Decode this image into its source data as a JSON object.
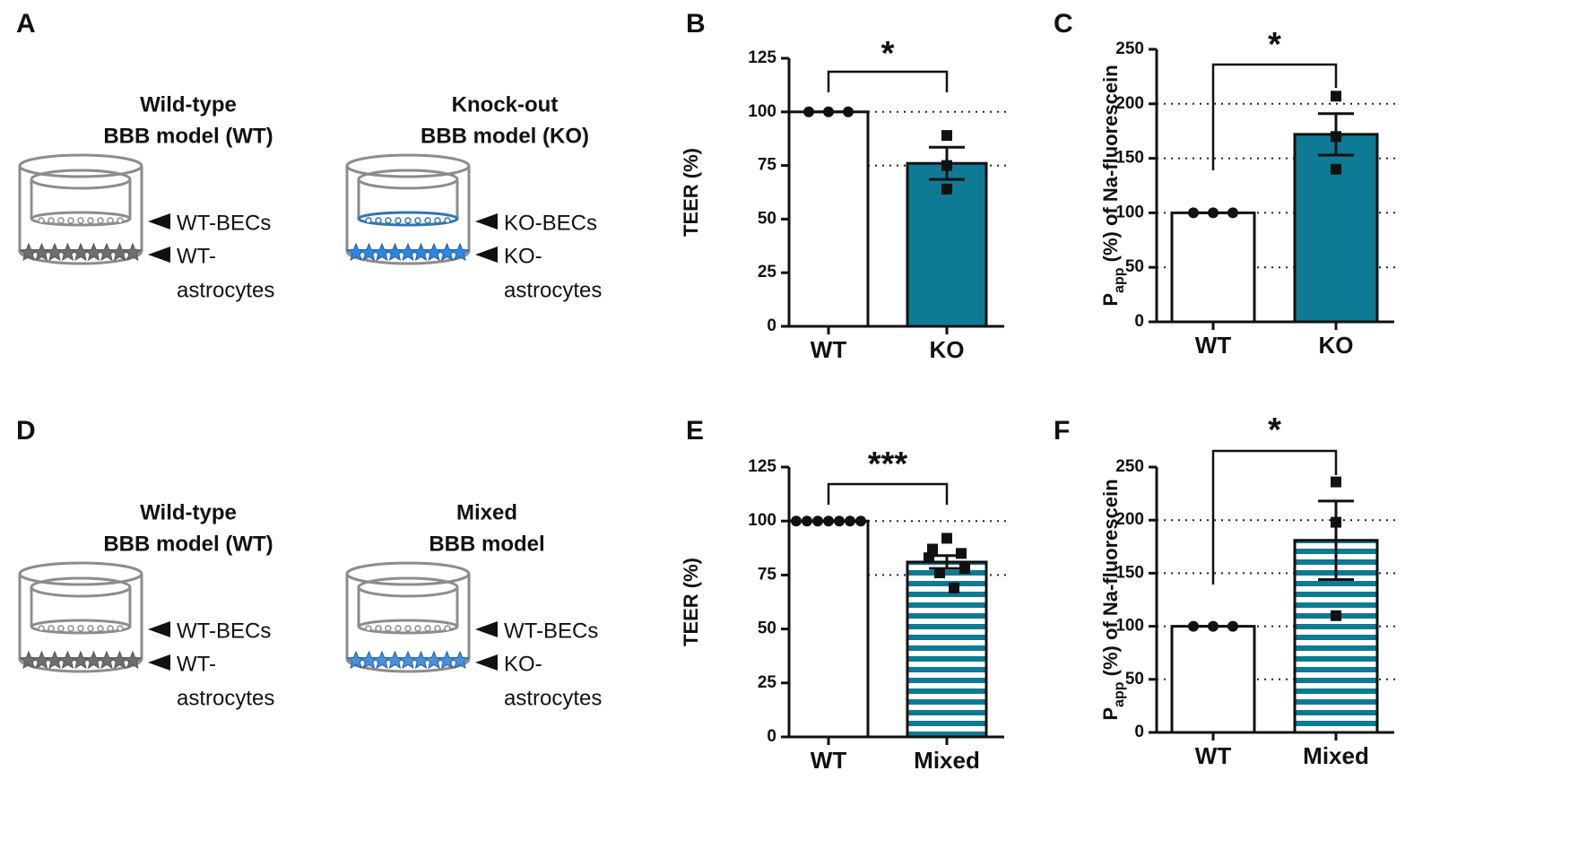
{
  "panel_labels": [
    "A",
    "D"
  ],
  "diagrams": [
    {
      "title": [
        "Wild-type",
        "BBB model (WT)"
      ],
      "cell_labels": [
        "WT-BECs",
        "WT-",
        "astrocytes"
      ],
      "cell_color": "#8c8c8c",
      "astro_color": "#6e6e6e"
    },
    {
      "title": [
        "Knock-out",
        "BBB model (KO)"
      ],
      "cell_labels": [
        "KO-BECs",
        "KO-",
        "astrocytes"
      ],
      "cell_color": "#2e75b6",
      "astro_color": "#2e86de"
    },
    {
      "title": [
        "Wild-type",
        "BBB model (WT)"
      ],
      "cell_labels": [
        "WT-BECs",
        "WT-",
        "astrocytes"
      ],
      "cell_color": "#8c8c8c",
      "astro_color": "#6e6e6e"
    },
    {
      "title": [
        "Mixed",
        "BBB model"
      ],
      "cell_labels": [
        "WT-BECs",
        "KO-",
        "astrocytes"
      ],
      "cell_color": "#8c8c8c",
      "astro_color": "#4a90d9"
    }
  ],
  "chart_data": [
    {
      "type": "bar",
      "panel": "B",
      "significance": "*",
      "ylabel": [
        "TEER (%)"
      ],
      "categories": [
        "WT",
        "KO"
      ],
      "values": [
        100,
        76
      ],
      "errors": [
        0,
        7.5
      ],
      "points": [
        [
          100,
          100,
          100
        ],
        [
          89,
          75,
          64
        ]
      ],
      "markers": [
        "circle",
        "square"
      ],
      "colors": [
        "#ffffff",
        "#0e7a94"
      ],
      "fill_style": "solid",
      "ylim": [
        0,
        125
      ],
      "yticks": [
        0,
        25,
        50,
        75,
        100,
        125
      ],
      "grid": [
        75,
        100
      ]
    },
    {
      "type": "bar",
      "panel": "C",
      "significance": "*",
      "ylabel": [
        "P",
        "app",
        " (%) of Na-fluorescein"
      ],
      "categories": [
        "WT",
        "KO"
      ],
      "values": [
        100,
        172
      ],
      "errors": [
        0,
        19
      ],
      "points": [
        [
          100,
          100,
          100
        ],
        [
          207,
          170,
          140
        ]
      ],
      "markers": [
        "circle",
        "square"
      ],
      "colors": [
        "#ffffff",
        "#0e7a94"
      ],
      "fill_style": "solid",
      "ylim": [
        0,
        250
      ],
      "yticks": [
        0,
        50,
        100,
        150,
        200,
        250
      ],
      "grid": [
        50,
        100,
        150,
        200
      ]
    },
    {
      "type": "bar",
      "panel": "E",
      "significance": "***",
      "ylabel": [
        "TEER (%)"
      ],
      "categories": [
        "WT",
        "Mixed"
      ],
      "values": [
        100,
        81
      ],
      "errors": [
        0,
        3
      ],
      "points": [
        [
          100,
          100,
          100,
          100,
          100,
          100,
          100
        ],
        [
          92,
          87,
          85,
          83,
          78,
          76,
          69
        ]
      ],
      "markers": [
        "circle",
        "square"
      ],
      "colors": [
        "#ffffff",
        "#0e7a94"
      ],
      "fill_style": "striped",
      "ylim": [
        0,
        125
      ],
      "yticks": [
        0,
        25,
        50,
        75,
        100,
        125
      ],
      "grid": [
        75,
        100
      ]
    },
    {
      "type": "bar",
      "panel": "F",
      "significance": "*",
      "ylabel": [
        "P",
        "app",
        " (%) of Na-fluorescein"
      ],
      "categories": [
        "WT",
        "Mixed"
      ],
      "values": [
        100,
        181
      ],
      "errors": [
        0,
        37
      ],
      "points": [
        [
          100,
          100,
          100
        ],
        [
          236,
          198,
          110
        ]
      ],
      "markers": [
        "circle",
        "square"
      ],
      "colors": [
        "#ffffff",
        "#0e7a94"
      ],
      "fill_style": "striped",
      "ylim": [
        0,
        250
      ],
      "yticks": [
        0,
        50,
        100,
        150,
        200,
        250
      ],
      "grid": [
        50,
        100,
        150,
        200
      ]
    }
  ]
}
